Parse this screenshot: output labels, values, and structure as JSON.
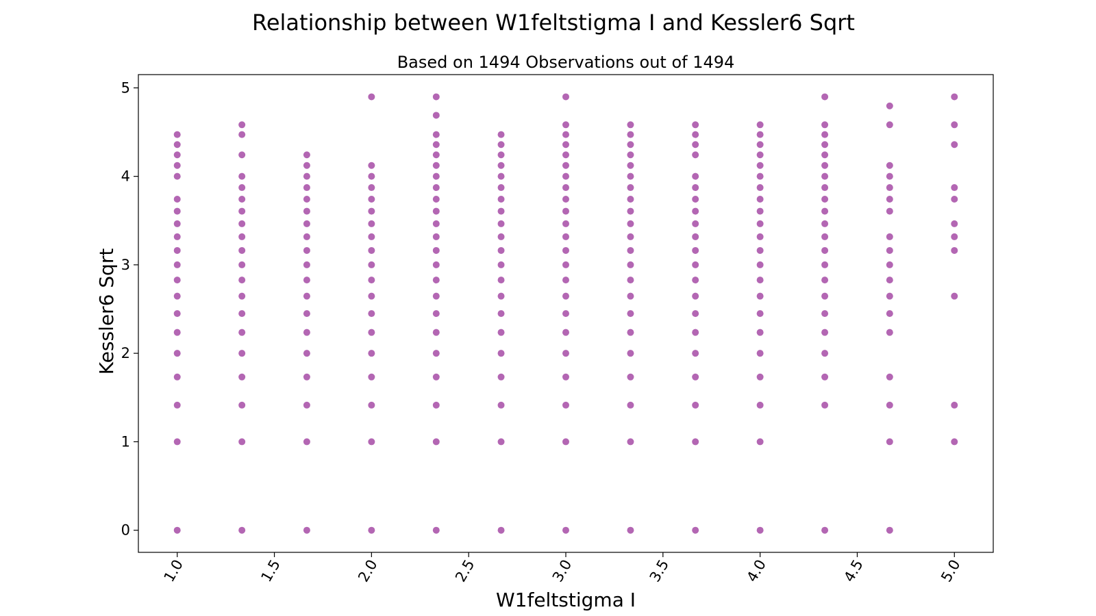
{
  "chart_data": {
    "type": "scatter",
    "title": "Relationship between W1feltstigma I and Kessler6 Sqrt",
    "subtitle": "Based on 1494 Observations out of 1494",
    "xlabel": "W1feltstigma I",
    "ylabel": "Kessler6 Sqrt",
    "xlim": [
      0.8,
      5.2
    ],
    "ylim": [
      -0.25,
      5.15
    ],
    "xticks": [
      "1.0",
      "1.5",
      "2.0",
      "2.5",
      "3.0",
      "3.5",
      "4.0",
      "4.5",
      "5.0"
    ],
    "yticks": [
      "0",
      "1",
      "2",
      "3",
      "4",
      "5"
    ],
    "grid": false,
    "marker_color": "#800080",
    "columns": [
      {
        "x": 1.0,
        "y": [
          0,
          1.0,
          1.414,
          1.732,
          2.0,
          2.236,
          2.449,
          2.646,
          2.828,
          3.0,
          3.162,
          3.317,
          3.464,
          3.606,
          3.742,
          4.0,
          4.123,
          4.243,
          4.359,
          4.472
        ]
      },
      {
        "x": 1.333,
        "y": [
          0,
          1.0,
          1.414,
          1.732,
          2.0,
          2.236,
          2.449,
          2.646,
          2.828,
          3.0,
          3.162,
          3.317,
          3.464,
          3.606,
          3.742,
          3.873,
          4.0,
          4.243,
          4.472,
          4.583
        ]
      },
      {
        "x": 1.667,
        "y": [
          0,
          1.0,
          1.414,
          1.732,
          2.0,
          2.236,
          2.449,
          2.646,
          2.828,
          3.0,
          3.162,
          3.317,
          3.464,
          3.606,
          3.742,
          3.873,
          4.0,
          4.123,
          4.243
        ]
      },
      {
        "x": 2.0,
        "y": [
          0,
          1.0,
          1.414,
          1.732,
          2.0,
          2.236,
          2.449,
          2.646,
          2.828,
          3.0,
          3.162,
          3.317,
          3.464,
          3.606,
          3.742,
          3.873,
          4.0,
          4.123,
          4.899
        ]
      },
      {
        "x": 2.333,
        "y": [
          0,
          1.0,
          1.414,
          1.732,
          2.0,
          2.236,
          2.449,
          2.646,
          2.828,
          3.0,
          3.162,
          3.317,
          3.464,
          3.606,
          3.742,
          3.873,
          4.0,
          4.123,
          4.243,
          4.359,
          4.472,
          4.69,
          4.899
        ]
      },
      {
        "x": 2.667,
        "y": [
          0,
          1.0,
          1.414,
          1.732,
          2.0,
          2.236,
          2.449,
          2.646,
          2.828,
          3.0,
          3.162,
          3.317,
          3.464,
          3.606,
          3.742,
          3.873,
          4.0,
          4.123,
          4.243,
          4.359,
          4.472
        ]
      },
      {
        "x": 3.0,
        "y": [
          0,
          1.0,
          1.414,
          1.732,
          2.0,
          2.236,
          2.449,
          2.646,
          2.828,
          3.0,
          3.162,
          3.317,
          3.464,
          3.606,
          3.742,
          3.873,
          4.0,
          4.123,
          4.243,
          4.359,
          4.472,
          4.583,
          4.899
        ]
      },
      {
        "x": 3.333,
        "y": [
          0,
          1.0,
          1.414,
          1.732,
          2.0,
          2.236,
          2.449,
          2.646,
          2.828,
          3.0,
          3.162,
          3.317,
          3.464,
          3.606,
          3.742,
          3.873,
          4.0,
          4.123,
          4.243,
          4.359,
          4.472,
          4.583
        ]
      },
      {
        "x": 3.667,
        "y": [
          0,
          1.0,
          1.414,
          1.732,
          2.0,
          2.236,
          2.449,
          2.646,
          2.828,
          3.0,
          3.162,
          3.317,
          3.464,
          3.606,
          3.742,
          3.873,
          4.0,
          4.243,
          4.359,
          4.472,
          4.583
        ]
      },
      {
        "x": 4.0,
        "y": [
          0,
          1.0,
          1.414,
          1.732,
          2.0,
          2.236,
          2.449,
          2.646,
          2.828,
          3.0,
          3.162,
          3.317,
          3.464,
          3.606,
          3.742,
          3.873,
          4.0,
          4.123,
          4.243,
          4.359,
          4.472,
          4.583
        ]
      },
      {
        "x": 4.333,
        "y": [
          0,
          1.414,
          1.732,
          2.0,
          2.236,
          2.449,
          2.646,
          2.828,
          3.0,
          3.162,
          3.317,
          3.464,
          3.606,
          3.742,
          3.873,
          4.0,
          4.123,
          4.243,
          4.359,
          4.472,
          4.583,
          4.899
        ]
      },
      {
        "x": 4.667,
        "y": [
          0,
          1.0,
          1.414,
          1.732,
          2.236,
          2.449,
          2.646,
          2.828,
          3.0,
          3.162,
          3.317,
          3.606,
          3.742,
          3.873,
          4.0,
          4.123,
          4.583,
          4.796
        ]
      },
      {
        "x": 5.0,
        "y": [
          1.0,
          1.414,
          2.646,
          3.162,
          3.317,
          3.464,
          3.742,
          3.873,
          4.359,
          4.583,
          4.899
        ]
      }
    ]
  }
}
